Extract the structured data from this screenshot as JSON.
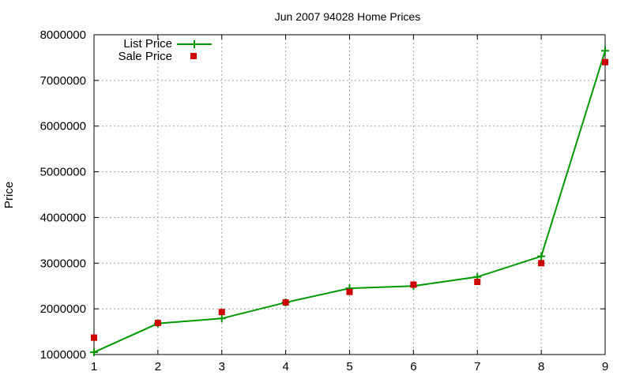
{
  "chart_data": {
    "type": "line",
    "title": "Jun 2007 94028 Home Prices",
    "xlabel": "",
    "ylabel": "Price",
    "x": [
      1,
      2,
      3,
      4,
      5,
      6,
      7,
      8,
      9
    ],
    "xlim": [
      1,
      9
    ],
    "ylim": [
      1000000,
      8000000
    ],
    "x_ticks": [
      "1",
      "2",
      "3",
      "4",
      "5",
      "6",
      "7",
      "8",
      "9"
    ],
    "y_ticks": [
      "1000000",
      "2000000",
      "3000000",
      "4000000",
      "5000000",
      "6000000",
      "7000000",
      "8000000"
    ],
    "grid": true,
    "legend_position": "top-left",
    "series": [
      {
        "name": "List Price",
        "style": "line-with-plus-markers",
        "color": "#009900",
        "values": [
          1050000,
          1680000,
          1790000,
          2140000,
          2450000,
          2500000,
          2700000,
          3150000,
          7650000
        ]
      },
      {
        "name": "Sale Price",
        "style": "square-markers",
        "color": "#cc0000",
        "values": [
          1370000,
          1690000,
          1930000,
          2140000,
          2370000,
          2530000,
          2590000,
          3000000,
          7400000
        ]
      }
    ]
  }
}
